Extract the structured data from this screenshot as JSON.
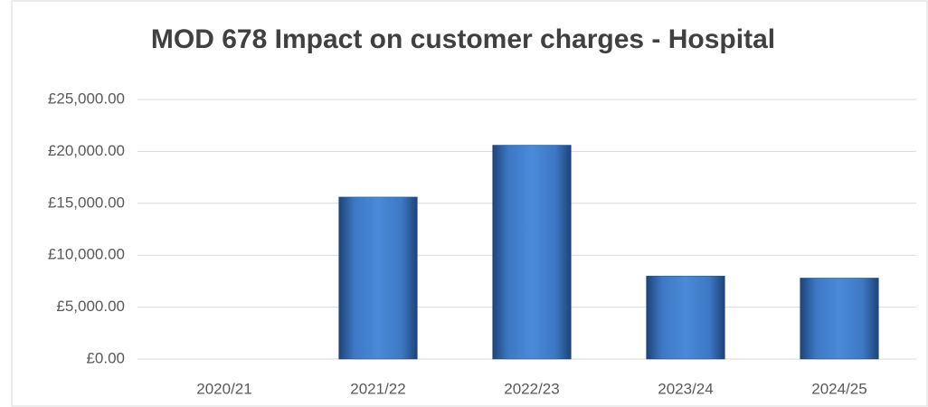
{
  "chart_data": {
    "type": "bar",
    "title": "MOD 678 Impact on customer charges - Hospital",
    "categories": [
      "2020/21",
      "2021/22",
      "2022/23",
      "2023/24",
      "2024/25"
    ],
    "values": [
      0,
      15600,
      20600,
      8000,
      7800
    ],
    "color": "#3f7fd0",
    "ylim": [
      0,
      25000
    ],
    "yticks": [
      {
        "value": 0,
        "label": "£0.00"
      },
      {
        "value": 5000,
        "label": "£5,000.00"
      },
      {
        "value": 10000,
        "label": "£10,000.00"
      },
      {
        "value": 15000,
        "label": "£15,000.00"
      },
      {
        "value": 20000,
        "label": "£20,000.00"
      },
      {
        "value": 25000,
        "label": "£25,000.00"
      }
    ],
    "grid": true
  }
}
